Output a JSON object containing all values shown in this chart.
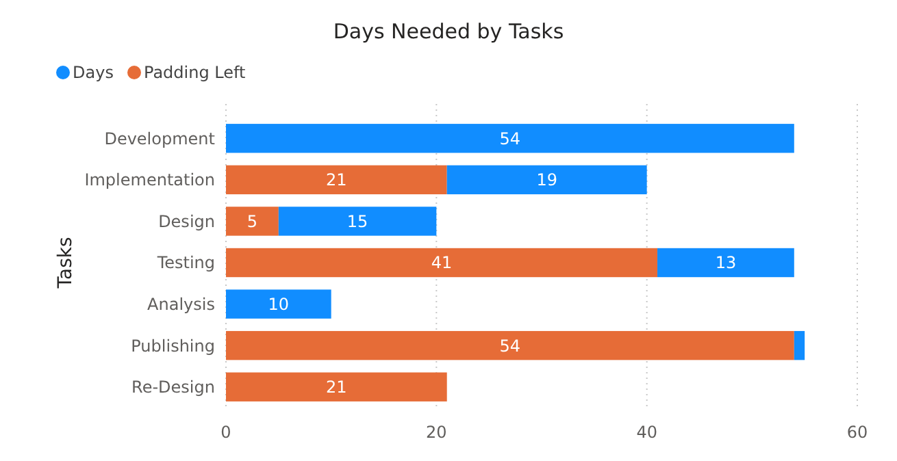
{
  "chart_data": {
    "type": "bar",
    "title": "Days Needed by Tasks",
    "ylabel": "Tasks",
    "orientation": "horizontal",
    "stacked": true,
    "categories": [
      "Development",
      "Implementation",
      "Design",
      "Testing",
      "Analysis",
      "Publishing",
      "Re-Design"
    ],
    "series": [
      {
        "name": "Padding Left",
        "color": "#e66c37",
        "values": [
          null,
          21,
          5,
          41,
          null,
          54,
          21
        ],
        "value_labels": [
          null,
          "21",
          "5",
          "41",
          null,
          "54",
          "21"
        ]
      },
      {
        "name": "Days",
        "color": "#118dff",
        "values": [
          54,
          19,
          15,
          13,
          10,
          1,
          null
        ],
        "value_labels": [
          "54",
          "19",
          "15",
          "13",
          "10",
          null,
          null
        ]
      }
    ],
    "xlim": [
      0,
      60
    ],
    "xticks": [
      0,
      20,
      40,
      60
    ],
    "grid": "x",
    "legend": "top left"
  }
}
